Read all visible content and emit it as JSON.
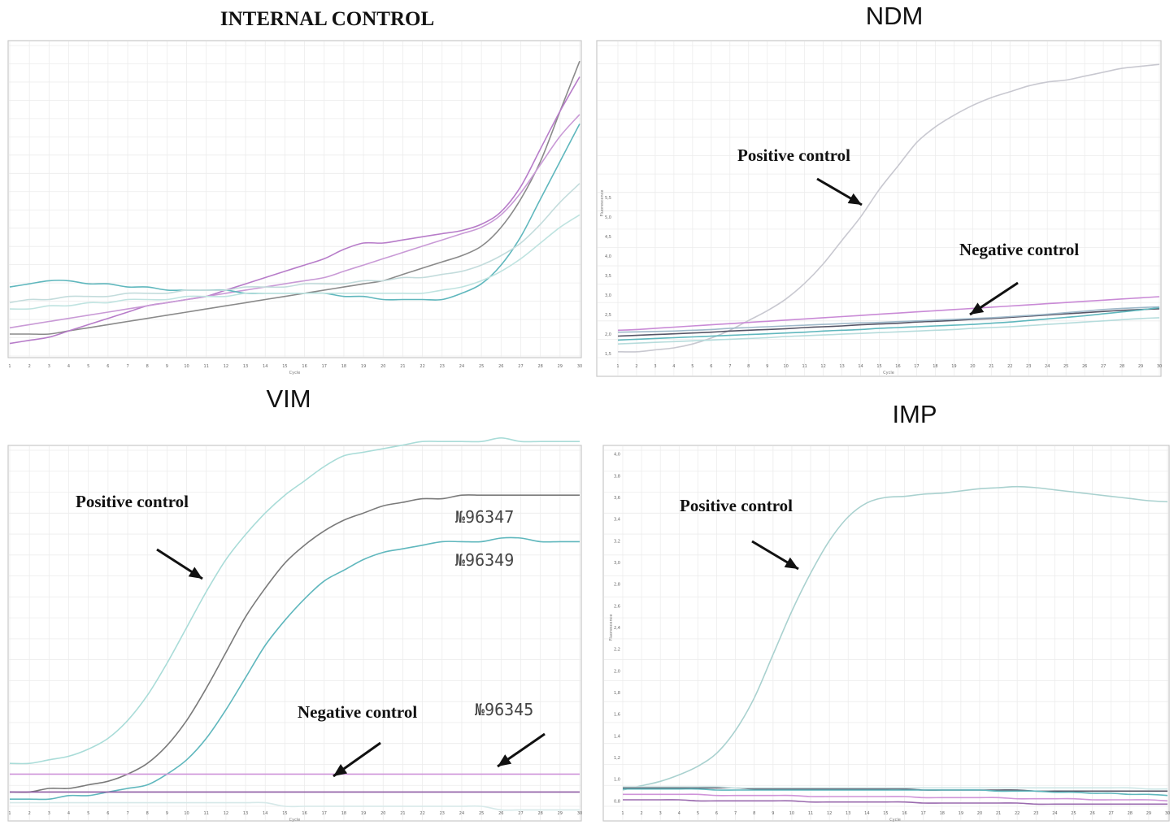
{
  "chart_data": [
    {
      "type": "line",
      "title": "INTERNAL CONTROL",
      "xlabel": "Cycle",
      "ylabel": "",
      "xlim": [
        1,
        30
      ],
      "ylim": [
        0,
        1
      ],
      "x": [
        1,
        2,
        3,
        4,
        5,
        6,
        7,
        8,
        9,
        10,
        11,
        12,
        13,
        14,
        15,
        16,
        17,
        18,
        19,
        20,
        21,
        22,
        23,
        24,
        25,
        26,
        27,
        28,
        29,
        30
      ],
      "grid": true,
      "series": [
        {
          "values": [
            0.07,
            0.07,
            0.07,
            0.08,
            0.09,
            0.1,
            0.11,
            0.12,
            0.13,
            0.14,
            0.15,
            0.16,
            0.17,
            0.18,
            0.19,
            0.2,
            0.21,
            0.22,
            0.23,
            0.24,
            0.26,
            0.28,
            0.3,
            0.32,
            0.35,
            0.41,
            0.5,
            0.62,
            0.78,
            0.94
          ],
          "color": "#8a8a8a"
        },
        {
          "values": [
            0.04,
            0.05,
            0.06,
            0.08,
            0.1,
            0.12,
            0.14,
            0.16,
            0.17,
            0.18,
            0.19,
            0.21,
            0.23,
            0.25,
            0.27,
            0.29,
            0.31,
            0.34,
            0.36,
            0.36,
            0.37,
            0.38,
            0.39,
            0.4,
            0.42,
            0.46,
            0.54,
            0.66,
            0.78,
            0.89
          ],
          "color": "#b77cc9"
        },
        {
          "values": [
            0.09,
            0.1,
            0.11,
            0.12,
            0.13,
            0.14,
            0.15,
            0.16,
            0.17,
            0.18,
            0.19,
            0.2,
            0.21,
            0.22,
            0.23,
            0.24,
            0.25,
            0.27,
            0.29,
            0.31,
            0.33,
            0.35,
            0.37,
            0.39,
            0.41,
            0.45,
            0.52,
            0.61,
            0.7,
            0.77
          ],
          "color": "#c99ad6"
        },
        {
          "values": [
            0.22,
            0.23,
            0.24,
            0.24,
            0.23,
            0.23,
            0.22,
            0.22,
            0.21,
            0.21,
            0.21,
            0.21,
            0.2,
            0.2,
            0.2,
            0.2,
            0.2,
            0.19,
            0.19,
            0.18,
            0.18,
            0.18,
            0.18,
            0.2,
            0.23,
            0.29,
            0.38,
            0.5,
            0.62,
            0.74
          ],
          "color": "#5fb7bd"
        },
        {
          "values": [
            0.17,
            0.18,
            0.18,
            0.19,
            0.19,
            0.19,
            0.2,
            0.2,
            0.2,
            0.21,
            0.21,
            0.21,
            0.22,
            0.22,
            0.22,
            0.23,
            0.23,
            0.23,
            0.24,
            0.24,
            0.25,
            0.25,
            0.26,
            0.27,
            0.29,
            0.32,
            0.36,
            0.42,
            0.49,
            0.55
          ],
          "color": "#c3dcdc"
        },
        {
          "values": [
            0.15,
            0.15,
            0.16,
            0.16,
            0.17,
            0.17,
            0.18,
            0.18,
            0.18,
            0.19,
            0.19,
            0.19,
            0.2,
            0.2,
            0.2,
            0.2,
            0.2,
            0.2,
            0.2,
            0.2,
            0.2,
            0.2,
            0.21,
            0.22,
            0.24,
            0.27,
            0.31,
            0.36,
            0.41,
            0.45
          ],
          "color": "#bfe3e0"
        }
      ],
      "annotations": []
    },
    {
      "type": "line",
      "title": "NDM",
      "xlabel": "Cycle",
      "ylabel": "Fluorescence",
      "xlim": [
        1,
        30
      ],
      "ylim": [
        1.4,
        9.3
      ],
      "yticks": [
        "1,5",
        "2,0",
        "2,5",
        "3,0",
        "3,5",
        "4,0",
        "4,5",
        "5,0",
        "5,5"
      ],
      "x": [
        1,
        2,
        3,
        4,
        5,
        6,
        7,
        8,
        9,
        10,
        11,
        12,
        13,
        14,
        15,
        16,
        17,
        18,
        19,
        20,
        21,
        22,
        23,
        24,
        25,
        26,
        27,
        28,
        29,
        30
      ],
      "grid": true,
      "series": [
        {
          "values": [
            1.55,
            1.55,
            1.6,
            1.65,
            1.75,
            1.9,
            2.1,
            2.35,
            2.6,
            2.9,
            3.3,
            3.8,
            4.4,
            5.0,
            5.7,
            6.3,
            6.9,
            7.3,
            7.6,
            7.85,
            8.05,
            8.2,
            8.35,
            8.45,
            8.5,
            8.6,
            8.7,
            8.8,
            8.85,
            8.9
          ],
          "color": "#c8c8d0"
        },
        {
          "values": [
            2.1,
            2.12,
            2.15,
            2.18,
            2.21,
            2.24,
            2.27,
            2.3,
            2.33,
            2.36,
            2.39,
            2.42,
            2.45,
            2.48,
            2.51,
            2.54,
            2.57,
            2.6,
            2.63,
            2.66,
            2.69,
            2.72,
            2.75,
            2.78,
            2.81,
            2.84,
            2.87,
            2.9,
            2.93,
            2.96
          ],
          "color": "#c98ad6"
        },
        {
          "values": [
            1.95,
            1.97,
            1.99,
            2.01,
            2.03,
            2.05,
            2.08,
            2.1,
            2.12,
            2.14,
            2.17,
            2.19,
            2.21,
            2.24,
            2.26,
            2.28,
            2.31,
            2.33,
            2.35,
            2.38,
            2.4,
            2.43,
            2.46,
            2.49,
            2.52,
            2.55,
            2.58,
            2.61,
            2.63,
            2.65
          ],
          "color": "#555566"
        },
        {
          "values": [
            1.85,
            1.87,
            1.89,
            1.91,
            1.93,
            1.95,
            1.97,
            1.99,
            2.01,
            2.03,
            2.05,
            2.08,
            2.1,
            2.12,
            2.15,
            2.17,
            2.19,
            2.21,
            2.23,
            2.25,
            2.28,
            2.31,
            2.35,
            2.39,
            2.43,
            2.47,
            2.52,
            2.57,
            2.62,
            2.68
          ],
          "color": "#5fb7bd"
        },
        {
          "values": [
            1.75,
            1.77,
            1.79,
            1.81,
            1.83,
            1.85,
            1.87,
            1.89,
            1.91,
            1.94,
            1.96,
            1.98,
            2.0,
            2.02,
            2.04,
            2.06,
            2.08,
            2.1,
            2.12,
            2.15,
            2.17,
            2.19,
            2.22,
            2.25,
            2.28,
            2.31,
            2.34,
            2.37,
            2.4,
            2.42
          ],
          "color": "#b6dcdc"
        },
        {
          "values": [
            2.05,
            2.06,
            2.07,
            2.08,
            2.1,
            2.12,
            2.15,
            2.17,
            2.19,
            2.21,
            2.23,
            2.25,
            2.27,
            2.29,
            2.3,
            2.32,
            2.34,
            2.36,
            2.38,
            2.4,
            2.42,
            2.45,
            2.48,
            2.51,
            2.55,
            2.59,
            2.63,
            2.66,
            2.68,
            2.7
          ],
          "color": "#9fb9ca"
        }
      ],
      "annotations": [
        {
          "text": "Positive control"
        },
        {
          "text": "Negative control"
        }
      ]
    },
    {
      "type": "line",
      "title": "VIM",
      "xlabel": "Cycle",
      "ylabel": "",
      "xlim": [
        1,
        30
      ],
      "ylim": [
        0,
        1
      ],
      "x": [
        1,
        2,
        3,
        4,
        5,
        6,
        7,
        8,
        9,
        10,
        11,
        12,
        13,
        14,
        15,
        16,
        17,
        18,
        19,
        20,
        21,
        22,
        23,
        24,
        25,
        26,
        27,
        28,
        29,
        30
      ],
      "grid": true,
      "series": [
        {
          "values": [
            0.12,
            0.12,
            0.13,
            0.14,
            0.16,
            0.19,
            0.24,
            0.31,
            0.4,
            0.5,
            0.6,
            0.69,
            0.76,
            0.82,
            0.87,
            0.91,
            0.95,
            0.98,
            0.99,
            1.0,
            1.01,
            1.02,
            1.02,
            1.02,
            1.02,
            1.03,
            1.02,
            1.02,
            1.02,
            1.02
          ],
          "color": "#a9dcd8"
        },
        {
          "values": [
            0.04,
            0.04,
            0.05,
            0.05,
            0.06,
            0.07,
            0.09,
            0.12,
            0.17,
            0.24,
            0.33,
            0.43,
            0.53,
            0.61,
            0.68,
            0.73,
            0.77,
            0.8,
            0.82,
            0.84,
            0.85,
            0.86,
            0.86,
            0.87,
            0.87,
            0.87,
            0.87,
            0.87,
            0.87,
            0.87
          ],
          "color": "#7a7a7a"
        },
        {
          "values": [
            0.02,
            0.02,
            0.02,
            0.03,
            0.03,
            0.04,
            0.05,
            0.06,
            0.09,
            0.13,
            0.19,
            0.27,
            0.36,
            0.45,
            0.52,
            0.58,
            0.63,
            0.66,
            0.69,
            0.71,
            0.72,
            0.73,
            0.74,
            0.74,
            0.74,
            0.75,
            0.75,
            0.74,
            0.74,
            0.74
          ],
          "color": "#5fb7bd"
        },
        {
          "values": [
            0.09,
            0.09,
            0.09,
            0.09,
            0.09,
            0.09,
            0.09,
            0.09,
            0.09,
            0.09,
            0.09,
            0.09,
            0.09,
            0.09,
            0.09,
            0.09,
            0.09,
            0.09,
            0.09,
            0.09,
            0.09,
            0.09,
            0.09,
            0.09,
            0.09,
            0.09,
            0.09,
            0.09,
            0.09,
            0.09
          ],
          "color": "#cf94d9"
        },
        {
          "values": [
            0.04,
            0.04,
            0.04,
            0.04,
            0.04,
            0.04,
            0.04,
            0.04,
            0.04,
            0.04,
            0.04,
            0.04,
            0.04,
            0.04,
            0.04,
            0.04,
            0.04,
            0.04,
            0.04,
            0.04,
            0.04,
            0.04,
            0.04,
            0.04,
            0.04,
            0.04,
            0.04,
            0.04,
            0.04,
            0.04
          ],
          "color": "#8e5aa3"
        },
        {
          "values": [
            0.01,
            0.01,
            0.01,
            0.01,
            0.01,
            0.01,
            0.01,
            0.01,
            0.01,
            0.01,
            0.01,
            0.01,
            0.01,
            0.01,
            0.0,
            0.0,
            0.0,
            0.0,
            0.0,
            0.0,
            0.0,
            0.0,
            0.0,
            0.0,
            0.0,
            -0.01,
            -0.01,
            -0.01,
            -0.01,
            -0.01
          ],
          "color": "#d6e9e9"
        }
      ],
      "annotations": [
        {
          "text": "Positive control"
        },
        {
          "text": "Negative control"
        },
        {
          "text": "№96347"
        },
        {
          "text": "№96349"
        },
        {
          "text": "№96345"
        }
      ]
    },
    {
      "type": "line",
      "title": "IMP",
      "xlabel": "Cycle",
      "ylabel": "Fluorescence",
      "xlim": [
        1,
        30
      ],
      "ylim": [
        0.75,
        4.05
      ],
      "yticks": [
        "0,8",
        "1,0",
        "1,2",
        "1,4",
        "1,6",
        "1,8",
        "2,0",
        "2,2",
        "2,4",
        "2,6",
        "2,8",
        "3,0",
        "3,2",
        "3,4",
        "3,6",
        "3,8",
        "4,0"
      ],
      "x": [
        1,
        2,
        3,
        4,
        5,
        6,
        7,
        8,
        9,
        10,
        11,
        12,
        13,
        14,
        15,
        16,
        17,
        18,
        19,
        20,
        21,
        22,
        23,
        24,
        25,
        26,
        27,
        28,
        29,
        30
      ],
      "grid": true,
      "series": [
        {
          "values": [
            0.9,
            0.94,
            0.98,
            1.04,
            1.12,
            1.24,
            1.45,
            1.75,
            2.15,
            2.55,
            2.9,
            3.2,
            3.42,
            3.55,
            3.6,
            3.61,
            3.63,
            3.64,
            3.66,
            3.68,
            3.69,
            3.7,
            3.69,
            3.67,
            3.65,
            3.63,
            3.61,
            3.59,
            3.57,
            3.56
          ],
          "color": "#a9d1cf"
        },
        {
          "values": [
            0.92,
            0.92,
            0.92,
            0.92,
            0.92,
            0.92,
            0.92,
            0.91,
            0.91,
            0.91,
            0.91,
            0.91,
            0.91,
            0.91,
            0.91,
            0.91,
            0.9,
            0.9,
            0.9,
            0.9,
            0.9,
            0.9,
            0.89,
            0.89,
            0.89,
            0.89,
            0.89,
            0.89,
            0.89,
            0.89
          ],
          "color": "#555566"
        },
        {
          "values": [
            0.91,
            0.91,
            0.91,
            0.91,
            0.91,
            0.9,
            0.9,
            0.9,
            0.9,
            0.9,
            0.9,
            0.9,
            0.9,
            0.9,
            0.9,
            0.9,
            0.9,
            0.9,
            0.9,
            0.9,
            0.89,
            0.89,
            0.89,
            0.88,
            0.88,
            0.87,
            0.87,
            0.86,
            0.86,
            0.85
          ],
          "color": "#5fb7bd"
        },
        {
          "values": [
            0.86,
            0.86,
            0.86,
            0.86,
            0.86,
            0.85,
            0.85,
            0.85,
            0.85,
            0.85,
            0.84,
            0.84,
            0.84,
            0.84,
            0.84,
            0.84,
            0.83,
            0.83,
            0.83,
            0.83,
            0.83,
            0.82,
            0.82,
            0.82,
            0.82,
            0.81,
            0.81,
            0.81,
            0.81,
            0.8
          ],
          "color": "#cf94d9"
        },
        {
          "values": [
            0.81,
            0.81,
            0.81,
            0.81,
            0.8,
            0.8,
            0.8,
            0.8,
            0.8,
            0.8,
            0.79,
            0.79,
            0.79,
            0.79,
            0.79,
            0.79,
            0.78,
            0.78,
            0.78,
            0.78,
            0.78,
            0.78,
            0.77,
            0.77,
            0.77,
            0.77,
            0.77,
            0.77,
            0.77,
            0.77
          ],
          "color": "#9a6aae"
        },
        {
          "values": [
            0.93,
            0.93,
            0.93,
            0.93,
            0.93,
            0.93,
            0.92,
            0.92,
            0.92,
            0.92,
            0.92,
            0.92,
            0.92,
            0.92,
            0.92,
            0.92,
            0.92,
            0.92,
            0.92,
            0.92,
            0.92,
            0.92,
            0.92,
            0.92,
            0.92,
            0.92,
            0.92,
            0.92,
            0.91,
            0.91
          ],
          "color": "#cde6e6"
        }
      ],
      "annotations": [
        {
          "text": "Positive control"
        }
      ]
    }
  ]
}
